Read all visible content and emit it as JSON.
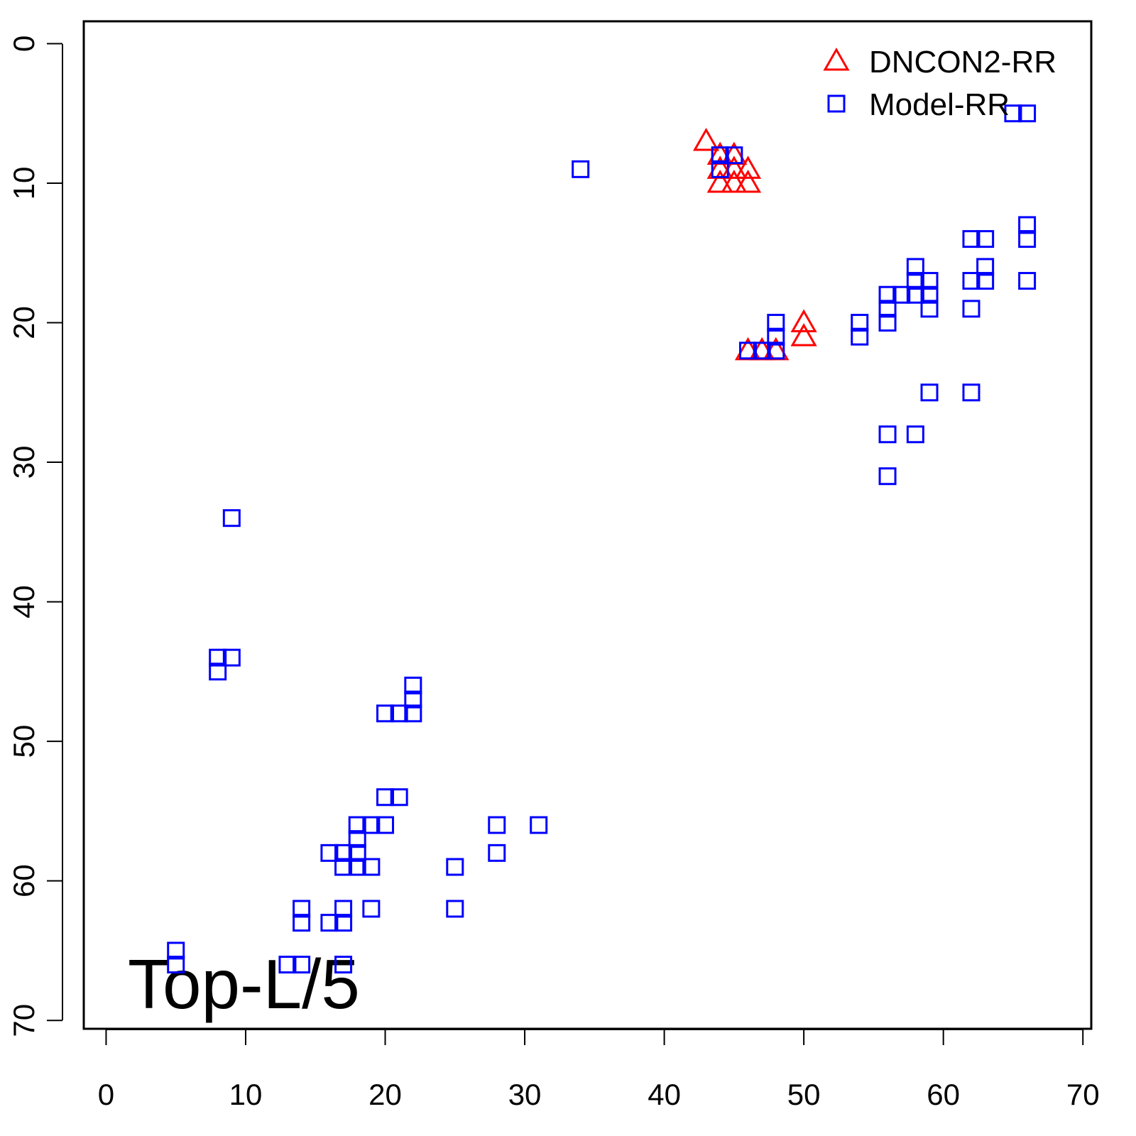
{
  "chart_data": {
    "type": "scatter",
    "annotation": "Top-L/5",
    "legend": "top-right",
    "xlim": [
      -1.6,
      70.6
    ],
    "ylim": [
      70.6,
      -1.6
    ],
    "xticks": [
      0,
      10,
      20,
      30,
      40,
      50,
      60,
      70
    ],
    "yticks": [
      0,
      10,
      20,
      30,
      40,
      50,
      60,
      70
    ],
    "series": [
      {
        "name": "DNCON2-RR",
        "color": "#ff0000",
        "marker": "triangle",
        "x": [
          43,
          44,
          45,
          44,
          45,
          46,
          44,
          45,
          46,
          46,
          47,
          48,
          50,
          50
        ],
        "values": [
          7,
          8,
          8,
          9,
          9,
          9,
          10,
          10,
          10,
          22,
          22,
          22,
          20,
          21
        ]
      },
      {
        "name": "Model-RR",
        "color": "#0000ff",
        "marker": "square",
        "x": [
          34,
          44,
          45,
          44,
          65,
          66,
          66,
          66,
          62,
          63,
          58,
          63,
          58,
          59,
          62,
          63,
          66,
          56,
          57,
          58,
          59,
          56,
          59,
          62,
          48,
          54,
          56,
          48,
          54,
          46,
          47,
          48,
          59,
          62,
          56,
          58,
          56,
          9,
          8,
          9,
          8,
          22,
          22,
          20,
          21,
          22,
          20,
          21,
          18,
          19,
          20,
          28,
          31,
          18,
          16,
          17,
          18,
          28,
          17,
          18,
          19,
          25,
          14,
          17,
          19,
          25,
          14,
          16,
          17,
          5,
          5,
          13,
          14,
          17
        ],
        "values": [
          9,
          8,
          8,
          9,
          5,
          5,
          13,
          14,
          14,
          14,
          16,
          16,
          17,
          17,
          17,
          17,
          17,
          18,
          18,
          18,
          18,
          19,
          19,
          19,
          20,
          20,
          20,
          21,
          21,
          22,
          22,
          22,
          25,
          25,
          28,
          28,
          31,
          34,
          44,
          44,
          45,
          46,
          47,
          48,
          48,
          48,
          54,
          54,
          56,
          56,
          56,
          56,
          56,
          57,
          58,
          58,
          58,
          58,
          59,
          59,
          59,
          59,
          62,
          62,
          62,
          62,
          63,
          63,
          63,
          65,
          66,
          66,
          66,
          66
        ]
      }
    ]
  }
}
